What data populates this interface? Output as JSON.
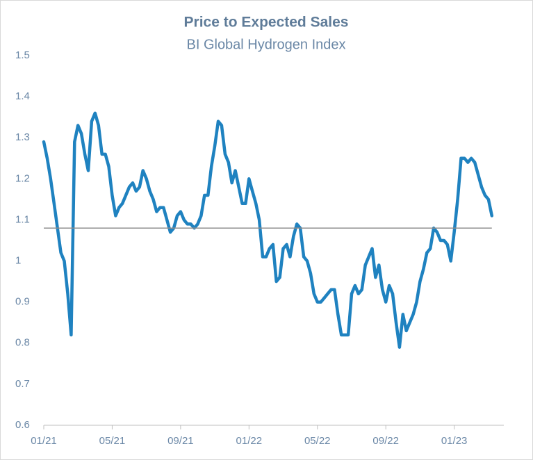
{
  "chart_data": {
    "type": "line",
    "title": "Price to Expected Sales",
    "subtitle": "BI Global Hydrogen Index",
    "x": [
      0,
      0.2,
      0.4,
      0.6,
      0.8,
      1,
      1.2,
      1.4,
      1.6,
      1.8,
      2,
      2.2,
      2.4,
      2.6,
      2.8,
      3,
      3.2,
      3.4,
      3.6,
      3.8,
      4,
      4.2,
      4.4,
      4.6,
      4.8,
      5,
      5.2,
      5.4,
      5.6,
      5.8,
      6,
      6.2,
      6.4,
      6.6,
      6.8,
      7,
      7.2,
      7.4,
      7.6,
      7.8,
      8,
      8.2,
      8.4,
      8.6,
      8.8,
      9,
      9.2,
      9.4,
      9.6,
      9.8,
      10,
      10.2,
      10.4,
      10.6,
      10.8,
      11,
      11.2,
      11.4,
      11.6,
      11.8,
      12,
      12.2,
      12.4,
      12.6,
      12.8,
      13,
      13.2,
      13.4,
      13.6,
      13.8,
      14,
      14.2,
      14.4,
      14.6,
      14.8,
      15,
      15.2,
      15.4,
      15.6,
      15.8,
      16,
      16.2,
      16.4,
      16.6,
      16.8,
      17,
      17.2,
      17.4,
      17.6,
      17.8,
      18,
      18.2,
      18.4,
      18.6,
      18.8,
      19,
      19.2,
      19.4,
      19.6,
      19.8,
      20,
      20.2,
      20.4,
      20.6,
      20.8,
      21,
      21.2,
      21.4,
      21.6,
      21.8,
      22,
      22.2,
      22.4,
      22.6,
      22.8,
      23,
      23.2,
      23.4,
      23.6,
      23.8,
      24,
      24.2,
      24.4,
      24.6,
      24.8,
      25,
      25.2,
      25.4,
      25.6,
      25.8,
      26,
      26.2
    ],
    "series": [
      {
        "name": "Price to Expected Sales",
        "color": "#1f82c0",
        "values": [
          1.29,
          1.25,
          1.2,
          1.14,
          1.08,
          1.02,
          1,
          0.92,
          0.82,
          1.29,
          1.33,
          1.31,
          1.26,
          1.22,
          1.34,
          1.36,
          1.33,
          1.26,
          1.26,
          1.23,
          1.16,
          1.11,
          1.13,
          1.14,
          1.16,
          1.18,
          1.19,
          1.17,
          1.18,
          1.22,
          1.2,
          1.17,
          1.15,
          1.12,
          1.13,
          1.13,
          1.1,
          1.07,
          1.08,
          1.11,
          1.12,
          1.1,
          1.09,
          1.09,
          1.08,
          1.09,
          1.11,
          1.16,
          1.16,
          1.23,
          1.28,
          1.34,
          1.33,
          1.26,
          1.24,
          1.19,
          1.22,
          1.18,
          1.14,
          1.14,
          1.2,
          1.17,
          1.14,
          1.1,
          1.01,
          1.01,
          1.03,
          1.04,
          0.95,
          0.96,
          1.03,
          1.04,
          1.01,
          1.06,
          1.09,
          1.08,
          1.01,
          1,
          0.97,
          0.92,
          0.9,
          0.9,
          0.91,
          0.92,
          0.93,
          0.93,
          0.87,
          0.82,
          0.82,
          0.82,
          0.92,
          0.94,
          0.92,
          0.93,
          0.99,
          1.01,
          1.03,
          0.96,
          0.99,
          0.93,
          0.9,
          0.94,
          0.92,
          0.85,
          0.79,
          0.87,
          0.83,
          0.85,
          0.87,
          0.9,
          0.95,
          0.98,
          1.02,
          1.03,
          1.08,
          1.07,
          1.05,
          1.05,
          1.04,
          1,
          1.07,
          1.15,
          1.25,
          1.25,
          1.24,
          1.25,
          1.24,
          1.21,
          1.18,
          1.16,
          1.15,
          1.11
        ]
      }
    ],
    "hline": 1.08,
    "xlim": [
      0,
      26.9
    ],
    "xticks": [
      {
        "value": 0,
        "label": "01/21"
      },
      {
        "value": 4,
        "label": "05/21"
      },
      {
        "value": 8,
        "label": "09/21"
      },
      {
        "value": 12,
        "label": "01/22"
      },
      {
        "value": 16,
        "label": "05/22"
      },
      {
        "value": 20,
        "label": "09/22"
      },
      {
        "value": 24,
        "label": "01/23"
      }
    ],
    "ylim": [
      0.6,
      1.5
    ],
    "yticks": [
      {
        "value": 0.6,
        "label": "0.6"
      },
      {
        "value": 0.7,
        "label": "0.7"
      },
      {
        "value": 0.8,
        "label": "0.8"
      },
      {
        "value": 0.9,
        "label": "0.9"
      },
      1,
      {
        "value": 1.1,
        "label": "1.1"
      },
      {
        "value": 1.2,
        "label": "1.2"
      },
      {
        "value": 1.3,
        "label": "1.3"
      },
      {
        "value": 1.4,
        "label": "1.4"
      },
      {
        "value": 1.5,
        "label": "1.5"
      }
    ],
    "grid": false
  }
}
